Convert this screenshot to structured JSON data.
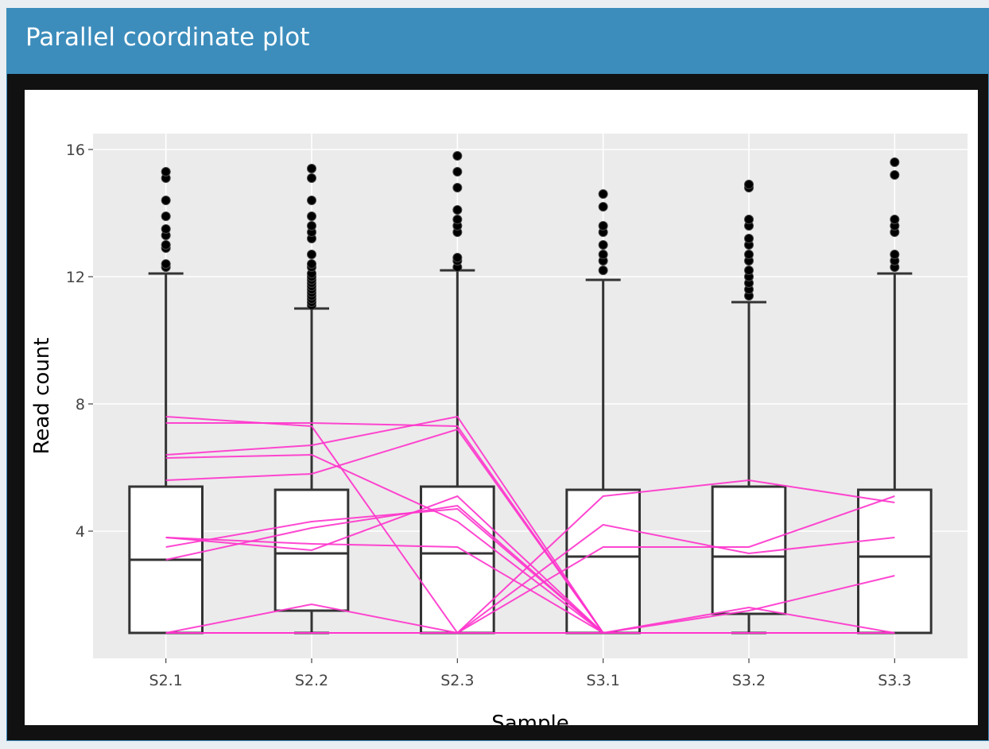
{
  "panel": {
    "title": "Parallel coordinate plot"
  },
  "colors": {
    "header": "#3c8dbc",
    "plot_background": "#ebebeb",
    "grid": "#ffffff",
    "box_stroke": "#333333",
    "parallel_line": "#ff33cc"
  },
  "chart_data": {
    "type": "box",
    "xlabel": "Sample",
    "ylabel": "Read count",
    "ylim": [
      0,
      16.5
    ],
    "yticks": [
      4,
      8,
      12,
      16
    ],
    "grid": true,
    "categories": [
      "S2.1",
      "S2.2",
      "S2.3",
      "S3.1",
      "S3.2",
      "S3.3"
    ],
    "boxes": [
      {
        "name": "S2.1",
        "q1": 0.8,
        "median": 3.1,
        "q3": 5.4,
        "whisker_low": 0.8,
        "whisker_high": 12.1,
        "outliers": [
          12.3,
          12.4,
          12.9,
          13.0,
          13.3,
          13.5,
          13.9,
          14.4,
          15.1,
          15.3
        ]
      },
      {
        "name": "S2.2",
        "q1": 1.5,
        "median": 3.3,
        "q3": 5.3,
        "whisker_low": 0.8,
        "whisker_high": 11.0,
        "outliers": [
          11.1,
          11.2,
          11.3,
          11.4,
          11.5,
          11.6,
          11.7,
          11.8,
          11.9,
          12.0,
          12.1,
          12.3,
          12.4,
          12.7,
          13.2,
          13.4,
          13.6,
          13.9,
          14.4,
          15.1,
          15.4
        ]
      },
      {
        "name": "S2.3",
        "q1": 0.8,
        "median": 3.3,
        "q3": 5.4,
        "whisker_low": 0.8,
        "whisker_high": 12.2,
        "outliers": [
          12.3,
          12.5,
          12.6,
          13.4,
          13.6,
          13.8,
          14.1,
          14.8,
          15.3,
          15.8
        ]
      },
      {
        "name": "S3.1",
        "q1": 0.8,
        "median": 3.2,
        "q3": 5.3,
        "whisker_low": 0.8,
        "whisker_high": 11.9,
        "outliers": [
          12.2,
          12.5,
          12.7,
          13.0,
          13.4,
          13.6,
          14.2,
          14.6
        ]
      },
      {
        "name": "S3.2",
        "q1": 1.4,
        "median": 3.2,
        "q3": 5.4,
        "whisker_low": 0.8,
        "whisker_high": 11.2,
        "outliers": [
          11.4,
          11.6,
          11.8,
          12.0,
          12.2,
          12.5,
          12.7,
          13.0,
          13.2,
          13.6,
          13.8,
          14.8,
          14.9
        ]
      },
      {
        "name": "S3.3",
        "q1": 0.8,
        "median": 3.2,
        "q3": 5.3,
        "whisker_low": 0.8,
        "whisker_high": 12.1,
        "outliers": [
          12.3,
          12.5,
          12.7,
          13.4,
          13.6,
          13.8,
          15.2,
          15.6
        ]
      }
    ],
    "lines": [
      [
        7.6,
        7.3,
        0.8,
        0.8,
        0.8,
        0.8
      ],
      [
        7.4,
        7.4,
        7.3,
        0.8,
        0.8,
        0.8
      ],
      [
        6.4,
        6.7,
        7.6,
        0.8,
        0.8,
        0.8
      ],
      [
        6.3,
        6.4,
        4.3,
        0.8,
        0.8,
        0.8
      ],
      [
        5.6,
        5.8,
        7.2,
        0.8,
        0.8,
        0.8
      ],
      [
        3.8,
        3.6,
        3.5,
        0.8,
        0.8,
        0.8
      ],
      [
        3.5,
        4.3,
        4.7,
        0.8,
        0.8,
        0.8
      ],
      [
        3.1,
        4.1,
        4.8,
        0.8,
        0.8,
        0.8
      ],
      [
        3.8,
        3.4,
        5.1,
        0.8,
        0.8,
        0.8
      ],
      [
        0.8,
        1.7,
        0.8,
        5.1,
        5.6,
        4.9
      ],
      [
        0.8,
        0.8,
        0.8,
        4.2,
        3.3,
        3.8
      ],
      [
        0.8,
        0.8,
        0.8,
        3.5,
        3.5,
        5.1
      ],
      [
        0.8,
        0.8,
        0.8,
        0.8,
        1.6,
        0.8
      ],
      [
        0.8,
        0.8,
        0.8,
        0.8,
        1.5,
        2.6
      ],
      [
        0.8,
        0.8,
        0.8,
        0.8,
        0.8,
        0.8
      ]
    ]
  }
}
